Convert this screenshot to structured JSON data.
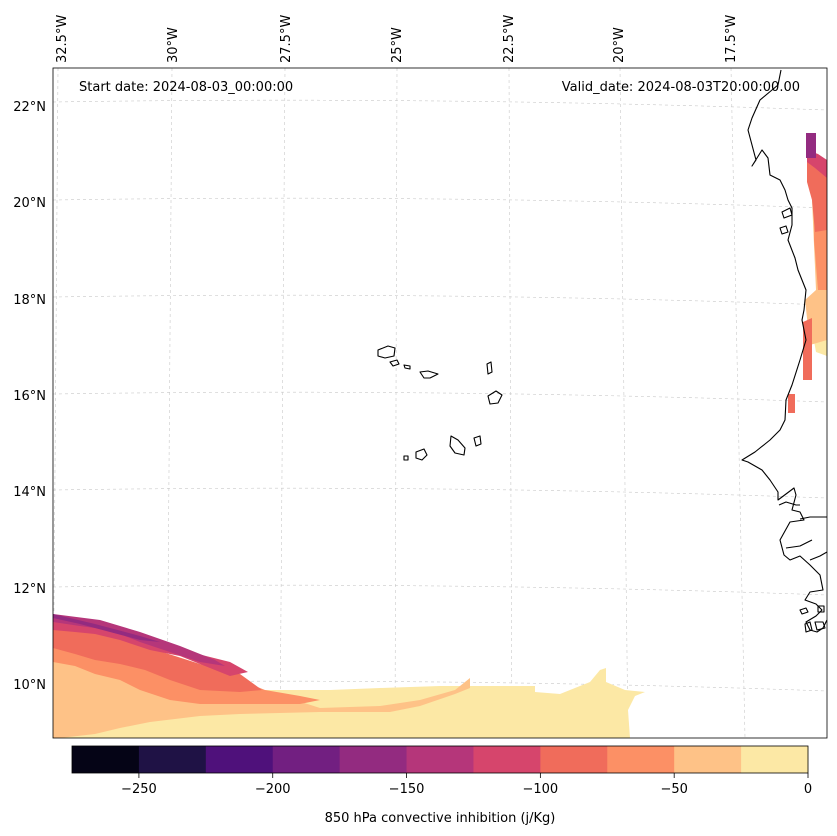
{
  "map": {
    "start_label": "Start date: 2024-08-03_00:00:00",
    "valid_label": "Valid_date: 2024-08-03T20:00:00.00",
    "lon_labels": [
      "32.5°W",
      "30°W",
      "27.5°W",
      "25°W",
      "22.5°W",
      "20°W",
      "17.5°W"
    ],
    "lat_labels": [
      "22°N",
      "20°N",
      "18°N",
      "16°N",
      "14°N",
      "12°N",
      "10°N"
    ],
    "lon_range": [
      -32.5,
      -15.5
    ],
    "lat_range": [
      8.9,
      22.7
    ]
  },
  "colorbar": {
    "label": "850 hPa convective inhibition (j/Kg)",
    "ticks": [
      "−250",
      "−200",
      "−150",
      "−100",
      "−50",
      "0"
    ],
    "levels": [
      -275,
      -250,
      -225,
      -200,
      -175,
      -150,
      -125,
      -100,
      -75,
      -50,
      -25,
      0
    ],
    "colors": [
      "#050416",
      "#1f1245",
      "#4f117b",
      "#721f81",
      "#932b80",
      "#b5367a",
      "#d6456c",
      "#f06c5b",
      "#fc9065",
      "#fec287",
      "#fce8a5"
    ]
  }
}
